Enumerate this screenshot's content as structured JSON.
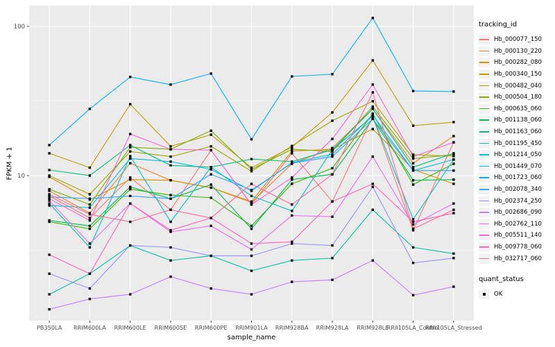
{
  "axes": {
    "x_title": "sample_name",
    "y_title": "FPKM + 1"
  },
  "legend": {
    "color_title": "tracking_id",
    "shape_title": "quant_status",
    "shape_items": [
      {
        "label": "OK"
      }
    ]
  },
  "chart_data": {
    "type": "line",
    "title": "",
    "xlabel": "sample_name",
    "ylabel": "FPKM + 1",
    "y_scale": "log10",
    "y_ticks": [
      10,
      100
    ],
    "y_minor_ticks": [
      3.162,
      31.62
    ],
    "ylim": [
      1.07,
      138
    ],
    "grid": "on",
    "legend_position": "right",
    "panel_bg": "#EBEBEB",
    "grid_color": "#FFFFFF",
    "point_shape": "square",
    "point_color": "#000000",
    "categories": [
      "PB350LA",
      "RRIM600LA",
      "RRIM600LE",
      "RRIM600SE",
      "RRIM600PE",
      "RRIM901LA",
      "RRIM928BA",
      "RRIM928LA",
      "RRIM928LE",
      "RRII105LA_Control",
      "RRII105LA_Stressed"
    ],
    "series": [
      {
        "name": "Hb_000077_150",
        "color": "#F8766D",
        "values": [
          7.3,
          5.2,
          9.7,
          5.9,
          14.8,
          6.4,
          14.1,
          6.7,
          24.8,
          4.3,
          16.7
        ]
      },
      {
        "name": "Hb_000130_220",
        "color": "#EA8331",
        "values": [
          7.9,
          5.6,
          12.1,
          9.3,
          8.3,
          6.6,
          12.0,
          15.3,
          28.0,
          12.1,
          18.4
        ]
      },
      {
        "name": "Hb_000282_080",
        "color": "#D89000",
        "values": [
          9.8,
          6.9,
          9.4,
          9.3,
          8.3,
          6.7,
          14.6,
          15.0,
          20.5,
          11.0,
          8.8
        ]
      },
      {
        "name": "Hb_000340_150",
        "color": "#C09B00",
        "values": [
          14.1,
          11.3,
          30.1,
          15.7,
          18.8,
          11.3,
          15.5,
          26.5,
          59.2,
          21.6,
          22.8
        ]
      },
      {
        "name": "Hb_000482_040",
        "color": "#A3A500",
        "values": [
          10.0,
          7.5,
          14.5,
          13.4,
          15.7,
          10.7,
          15.8,
          23.3,
          31.5,
          13.8,
          13.5
        ]
      },
      {
        "name": "Hb_000504_180",
        "color": "#7CAE00",
        "values": [
          8.1,
          6.4,
          15.5,
          15.0,
          20.0,
          11.0,
          15.0,
          14.5,
          29.0,
          13.0,
          13.8
        ]
      },
      {
        "name": "Hb_000635_060",
        "color": "#39B600",
        "values": [
          4.9,
          4.4,
          8.1,
          7.4,
          7.1,
          4.6,
          8.8,
          11.2,
          26.0,
          8.7,
          12.0
        ]
      },
      {
        "name": "Hb_001138_060",
        "color": "#00BB4E",
        "values": [
          5.0,
          4.6,
          8.4,
          7.0,
          8.7,
          4.4,
          9.4,
          10.2,
          24.0,
          9.3,
          9.4
        ]
      },
      {
        "name": "Hb_001163_060",
        "color": "#00BF7D",
        "values": [
          10.9,
          10.0,
          16.0,
          11.7,
          11.4,
          12.9,
          12.4,
          14.9,
          28.0,
          11.4,
          14.1
        ]
      },
      {
        "name": "Hb_001195_450",
        "color": "#00C1A3",
        "values": [
          1.6,
          2.2,
          3.4,
          2.7,
          2.9,
          2.3,
          2.7,
          2.8,
          5.9,
          3.3,
          3.0
        ]
      },
      {
        "name": "Hb_001214_050",
        "color": "#00BFC4",
        "values": [
          6.5,
          3.3,
          13.5,
          4.9,
          11.4,
          7.3,
          5.8,
          14.9,
          25.0,
          5.1,
          12.8
        ]
      },
      {
        "name": "Hb_001449_070",
        "color": "#00BAE0",
        "values": [
          6.3,
          6.1,
          13.0,
          12.4,
          11.0,
          7.9,
          12.2,
          13.9,
          25.5,
          10.8,
          12.8
        ]
      },
      {
        "name": "Hb_001723_060",
        "color": "#00B0F6",
        "values": [
          16.0,
          28.0,
          45.8,
          40.7,
          48.3,
          17.5,
          46.2,
          47.8,
          113.8,
          36.9,
          36.6
        ]
      },
      {
        "name": "Hb_002078_340",
        "color": "#35A2FF",
        "values": [
          7.2,
          7.0,
          7.3,
          7.0,
          10.2,
          8.0,
          12.1,
          13.4,
          24.0,
          10.8,
          10.8
        ]
      },
      {
        "name": "Hb_002374_250",
        "color": "#9590FF",
        "values": [
          2.2,
          1.75,
          3.4,
          3.3,
          2.9,
          2.9,
          3.5,
          3.4,
          8.4,
          2.6,
          2.8
        ]
      },
      {
        "name": "Hb_002686_090",
        "color": "#C77CFF",
        "values": [
          1.27,
          1.49,
          1.6,
          2.1,
          1.75,
          1.6,
          1.94,
          2.0,
          2.7,
          1.58,
          1.8
        ]
      },
      {
        "name": "Hb_002762_110",
        "color": "#E76BF3",
        "values": [
          6.8,
          3.5,
          6.5,
          4.2,
          4.6,
          3.2,
          5.4,
          5.3,
          13.4,
          4.7,
          6.5
        ]
      },
      {
        "name": "Hb_005511_140",
        "color": "#FA62DB",
        "values": [
          7.0,
          5.0,
          19.0,
          15.0,
          14.8,
          6.4,
          9.7,
          17.6,
          40.7,
          13.4,
          16.7
        ]
      },
      {
        "name": "Hb_009778_060",
        "color": "#FF62BC",
        "values": [
          2.95,
          2.2,
          6.5,
          4.3,
          5.2,
          3.5,
          3.6,
          6.7,
          8.8,
          4.9,
          5.6
        ]
      },
      {
        "name": "Hb_032717_060",
        "color": "#FF6A98",
        "values": [
          7.5,
          5.5,
          4.9,
          5.9,
          5.2,
          8.8,
          6.4,
          10.2,
          36.1,
          4.4,
          5.9
        ]
      }
    ]
  }
}
